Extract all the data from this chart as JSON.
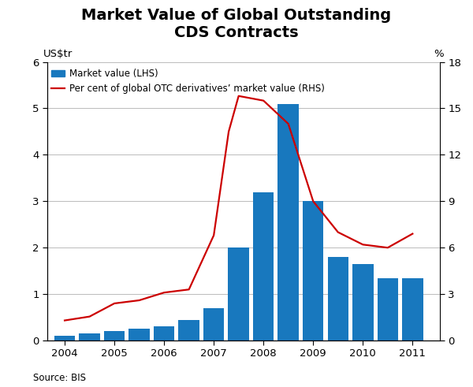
{
  "title": "Market Value of Global Outstanding\nCDS Contracts",
  "title_fontsize": 14,
  "ylabel_left": "US$tr",
  "ylabel_right": "%",
  "source": "Source: BIS",
  "bar_x": [
    2004.0,
    2004.5,
    2005.0,
    2005.5,
    2006.0,
    2006.5,
    2007.0,
    2007.5,
    2008.0,
    2008.5,
    2009.0,
    2009.5,
    2010.0,
    2010.5,
    2011.0
  ],
  "bar_heights": [
    0.1,
    0.15,
    0.2,
    0.25,
    0.3,
    0.45,
    0.7,
    2.0,
    3.2,
    5.1,
    3.0,
    1.8,
    1.65,
    1.35,
    1.35
  ],
  "bar_color": "#1878be",
  "bar_width": 0.42,
  "line_x": [
    2004.0,
    2004.5,
    2005.0,
    2005.5,
    2006.0,
    2006.5,
    2007.0,
    2007.3,
    2007.5,
    2008.0,
    2008.5,
    2009.0,
    2009.5,
    2010.0,
    2010.5,
    2011.0
  ],
  "line_y": [
    1.3,
    1.55,
    2.4,
    2.6,
    3.1,
    3.3,
    6.8,
    13.5,
    15.8,
    15.5,
    14.0,
    9.0,
    7.0,
    6.2,
    6.0,
    6.9
  ],
  "line_color": "#cc0000",
  "ylim_left": [
    0,
    6
  ],
  "ylim_right": [
    0,
    18
  ],
  "yticks_left": [
    0,
    1,
    2,
    3,
    4,
    5,
    6
  ],
  "yticks_right": [
    0,
    3,
    6,
    9,
    12,
    15,
    18
  ],
  "xlim": [
    2003.65,
    2011.55
  ],
  "xtick_years": [
    2004,
    2005,
    2006,
    2007,
    2008,
    2009,
    2010,
    2011
  ],
  "legend_bar_label": "Market value (LHS)",
  "legend_line_label": "Per cent of global OTC derivatives’ market value (RHS)",
  "background_color": "#ffffff",
  "grid_color": "#bbbbbb"
}
